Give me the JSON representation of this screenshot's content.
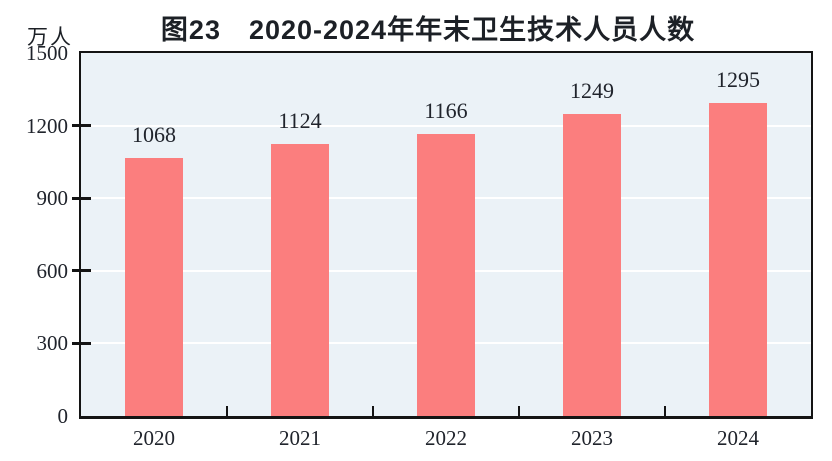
{
  "chart_data": {
    "type": "bar",
    "title": "图23　2020-2024年年末卫生技术人员人数",
    "unit_label": "万人",
    "categories": [
      "2020",
      "2021",
      "2022",
      "2023",
      "2024"
    ],
    "values": [
      1068,
      1124,
      1166,
      1249,
      1295
    ],
    "data_labels": [
      "1068",
      "1124",
      "1166",
      "1249",
      "1295"
    ],
    "xlabel": "",
    "ylabel": "万人",
    "ylim": [
      0,
      1500
    ],
    "yticks": [
      0,
      300,
      600,
      900,
      1200,
      1500
    ],
    "ytick_labels": [
      "0",
      "300",
      "600",
      "900",
      "1200",
      "1500"
    ],
    "grid": true,
    "legend": "none",
    "colors": {
      "bar": "#fb7e7e",
      "plot_background": "#ebf2f7",
      "gridline": "#ffffff",
      "axis": "#141414",
      "text": "#20242c"
    }
  }
}
